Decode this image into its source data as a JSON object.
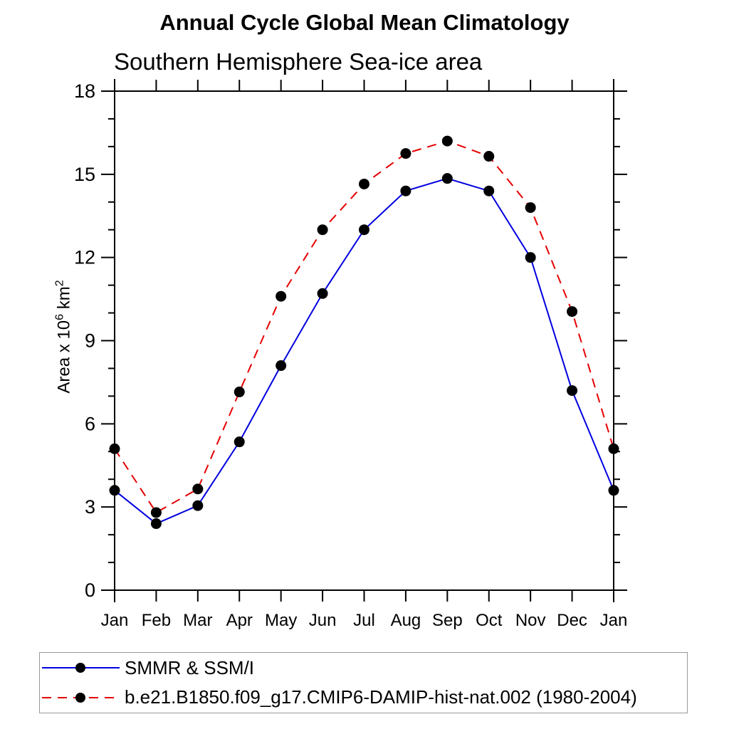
{
  "chart_data": {
    "type": "line",
    "title": "Annual Cycle Global Mean Climatology",
    "subtitle": "Southern Hemisphere Sea-ice area",
    "ylabel": "Area x 10^6 km^2",
    "ylabel_parts": {
      "prefix": "Area x 10",
      "sup1": "6",
      "mid": " km",
      "sup2": "2"
    },
    "categories": [
      "Jan",
      "Feb",
      "Mar",
      "Apr",
      "May",
      "Jun",
      "Jul",
      "Aug",
      "Sep",
      "Oct",
      "Nov",
      "Dec",
      "Jan"
    ],
    "series": [
      {
        "name": "SMMR & SSM/I",
        "color": "#0000e0",
        "line_style": "solid",
        "marker": "filled-circle",
        "marker_color": "#000000",
        "values": [
          3.6,
          2.4,
          3.05,
          5.35,
          8.1,
          10.7,
          13.0,
          14.4,
          14.85,
          14.4,
          12.0,
          7.2,
          3.6
        ]
      },
      {
        "name": "b.e21.B1850.f09_g17.CMIP6-DAMIP-hist-nat.002 (1980-2004)",
        "color": "#e60000",
        "line_style": "dashed",
        "marker": "filled-circle",
        "marker_color": "#000000",
        "values": [
          5.1,
          2.8,
          3.65,
          7.15,
          10.6,
          13.0,
          14.65,
          15.75,
          16.2,
          15.65,
          13.8,
          10.05,
          5.1
        ]
      }
    ],
    "ylim": [
      0,
      18
    ],
    "ytick_major": 3,
    "ytick_minor": 1,
    "ytick_labels": [
      "0",
      "3",
      "6",
      "9",
      "12",
      "15",
      "18"
    ],
    "grid": false,
    "legend_position": "bottom",
    "axis_color": "#000000",
    "background_color": "#ffffff"
  }
}
